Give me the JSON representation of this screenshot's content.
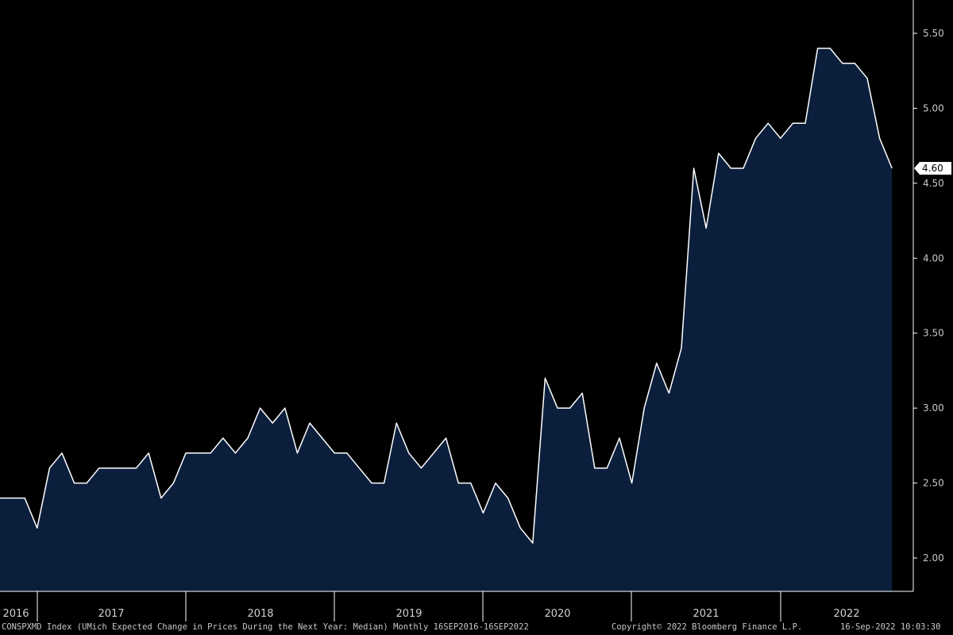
{
  "colors": {
    "background": "#000000",
    "area_fill": "#0b1f3d",
    "line": "#ffffff",
    "axis": "#ffffff",
    "tick_text": "#c8c8c8",
    "last_label_bg": "#ffffff"
  },
  "footer": {
    "left": "CONSPXMD Index (UMich Expected Change in Prices During the Next Year: Median)  Monthly 16SEP2016-16SEP2022",
    "middle": "Copyright© 2022 Bloomberg Finance L.P.",
    "right": "16-Sep-2022 10:03:30"
  },
  "chart_data": {
    "type": "area",
    "x_labels": [
      "2016",
      "2017",
      "2018",
      "2019",
      "2020",
      "2021",
      "2022"
    ],
    "y_axis": {
      "position": "right",
      "ticks": [
        "5.50",
        "5.00",
        "4.50",
        "4.00",
        "3.50",
        "3.00",
        "2.50",
        "2.00"
      ],
      "ylim": [
        1.8,
        5.9
      ]
    },
    "last_value_label": "4.60",
    "series": [
      {
        "values": [
          2.4,
          2.4,
          2.4,
          2.2,
          2.6,
          2.7,
          2.5,
          2.5,
          2.6,
          2.6,
          2.6,
          2.6,
          2.7,
          2.4,
          2.5,
          2.7,
          2.7,
          2.7,
          2.8,
          2.7,
          2.8,
          3.0,
          2.9,
          3.0,
          2.7,
          2.9,
          2.8,
          2.7,
          2.7,
          2.6,
          2.5,
          2.5,
          2.9,
          2.7,
          2.6,
          2.7,
          2.8,
          2.5,
          2.5,
          2.3,
          2.5,
          2.4,
          2.2,
          2.1,
          3.2,
          3.0,
          3.0,
          3.1,
          2.6,
          2.6,
          2.8,
          2.5,
          3.0,
          3.3,
          3.1,
          3.4,
          4.6,
          4.2,
          4.7,
          4.6,
          4.6,
          4.8,
          4.9,
          4.8,
          4.9,
          4.9,
          5.4,
          5.4,
          5.3,
          5.3,
          5.2,
          4.8,
          4.6
        ]
      }
    ]
  }
}
